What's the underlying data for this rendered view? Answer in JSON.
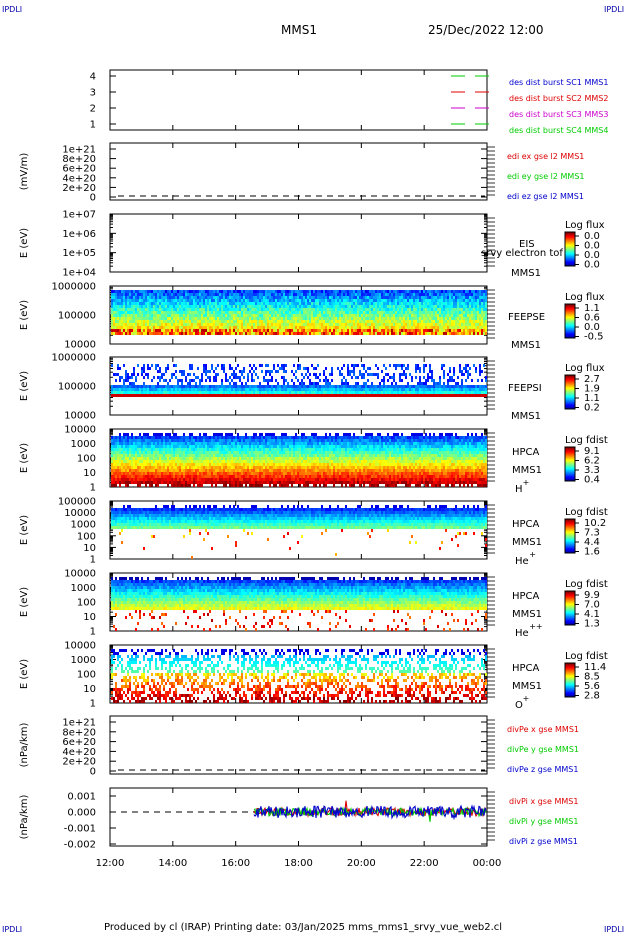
{
  "corner_label": "IPDLI",
  "title": {
    "spacecraft": "MMS1",
    "datetime": "25/Dec/2022 12:00"
  },
  "footer": {
    "text": "Produced by cl (IRAP)   Printing date: 03/Jan/2025   mms_mms1_srvy_vue_web2.cl"
  },
  "colors": {
    "red": "#dd0000",
    "green": "#00cc00",
    "blue": "#0000cc",
    "magenta": "#cc00cc",
    "black": "#000000"
  },
  "chart_data": [
    {
      "type": "line",
      "panel": "availability",
      "ylabel": "",
      "ylim": [
        0.5,
        4.5
      ],
      "yticks": [
        "1",
        "2",
        "3",
        "4"
      ],
      "series": [
        {
          "name": "des dist burst SC1 MMS1",
          "color": "#00cc00",
          "values": []
        },
        {
          "name": "des dist burst SC2 MMS2",
          "color": "#dd0000",
          "values": []
        },
        {
          "name": "des dist burst SC3 MMS3",
          "color": "#cc00cc",
          "values": []
        },
        {
          "name": "des dist burst SC4 MMS4",
          "color": "#00cc00",
          "values": []
        }
      ]
    },
    {
      "type": "line",
      "panel": "edi_e",
      "ylabel": "(mV/m)",
      "yticks": [
        "0",
        "2e+20",
        "4e+20",
        "6e+20",
        "8e+20",
        "1e+21"
      ],
      "series": [
        {
          "name": "edi ex gse l2 MMS1",
          "color": "#dd0000",
          "values": []
        },
        {
          "name": "edi ey gse l2 MMS1",
          "color": "#00cc00",
          "values": []
        },
        {
          "name": "edi ez gse l2 MMS1",
          "color": "#0000cc",
          "values": []
        }
      ]
    },
    {
      "type": "heatmap",
      "panel": "eis",
      "ylabel": "E (eV)",
      "yscale": "log",
      "ylim": [
        10000.0,
        10000000.0
      ],
      "yticks": [
        "1e+04",
        "1e+05",
        "1e+06",
        "1e+07"
      ],
      "instrument": [
        "EIS",
        "srvy electron tof",
        "MMS1"
      ],
      "colorbar": {
        "title": "Log flux",
        "ticks": [
          "0.0",
          "0.0",
          "0.0",
          "0.0"
        ]
      },
      "values": []
    },
    {
      "type": "heatmap",
      "panel": "feeps_e",
      "ylabel": "E (eV)",
      "yscale": "log",
      "ylim": [
        10000,
        1000000
      ],
      "yticks": [
        "10000",
        "100000",
        "1000000"
      ],
      "instrument": [
        "FEEPSE",
        "MMS1"
      ],
      "colorbar": {
        "title": "Log flux",
        "ticks": [
          "1.1",
          "0.6",
          "0.0",
          "-0.5"
        ]
      }
    },
    {
      "type": "heatmap",
      "panel": "feeps_i",
      "ylabel": "E (eV)",
      "yscale": "log",
      "ylim": [
        10000,
        1000000
      ],
      "yticks": [
        "10000",
        "100000",
        "1000000"
      ],
      "instrument": [
        "FEEPSI",
        "MMS1"
      ],
      "colorbar": {
        "title": "Log flux",
        "ticks": [
          "2.7",
          "1.9",
          "1.1",
          "0.2"
        ]
      }
    },
    {
      "type": "heatmap",
      "panel": "hpca_h",
      "ylabel": "E (eV)",
      "yscale": "log",
      "ylim": [
        1,
        10000
      ],
      "yticks": [
        "1",
        "10",
        "100",
        "1000",
        "10000"
      ],
      "instrument": [
        "HPCA",
        "MMS1",
        "H",
        "+"
      ],
      "colorbar": {
        "title": "Log fdist",
        "ticks": [
          "9.1",
          "6.2",
          "3.3",
          "0.4"
        ]
      }
    },
    {
      "type": "heatmap",
      "panel": "hpca_he",
      "ylabel": "E (eV)",
      "yscale": "log",
      "ylim": [
        1,
        100000
      ],
      "yticks": [
        "1",
        "10",
        "100",
        "1000",
        "10000",
        "100000"
      ],
      "instrument": [
        "HPCA",
        "MMS1",
        "He",
        "+"
      ],
      "colorbar": {
        "title": "Log fdist",
        "ticks": [
          "10.2",
          "7.3",
          "4.4",
          "1.6"
        ]
      }
    },
    {
      "type": "heatmap",
      "panel": "hpca_hepp",
      "ylabel": "E (eV)",
      "yscale": "log",
      "ylim": [
        1,
        10000
      ],
      "yticks": [
        "1",
        "10",
        "100",
        "1000",
        "10000"
      ],
      "instrument": [
        "HPCA",
        "MMS1",
        "He",
        "++"
      ],
      "colorbar": {
        "title": "Log fdist",
        "ticks": [
          "9.9",
          "7.0",
          "4.1",
          "1.3"
        ]
      }
    },
    {
      "type": "heatmap",
      "panel": "hpca_o",
      "ylabel": "E (eV)",
      "yscale": "log",
      "ylim": [
        1,
        10000
      ],
      "yticks": [
        "1",
        "10",
        "100",
        "1000",
        "10000"
      ],
      "instrument": [
        "HPCA",
        "MMS1",
        "O",
        "+"
      ],
      "colorbar": {
        "title": "Log fdist",
        "ticks": [
          "11.4",
          "8.5",
          "5.6",
          "2.8"
        ]
      }
    },
    {
      "type": "line",
      "panel": "divpe",
      "ylabel": "(nPa/km)",
      "yticks": [
        "0",
        "2e+20",
        "4e+20",
        "6e+20",
        "8e+20",
        "1e+21"
      ],
      "series": [
        {
          "name": "divPe x gse MMS1",
          "color": "#dd0000",
          "values": []
        },
        {
          "name": "divPe y gse MMS1",
          "color": "#00cc00",
          "values": []
        },
        {
          "name": "divPe z gse MMS1",
          "color": "#0000cc",
          "values": []
        }
      ]
    },
    {
      "type": "line",
      "panel": "divpi",
      "ylabel": "(nPa/km)",
      "ylim": [
        -0.0023,
        0.0015
      ],
      "yticks": [
        "-0.002",
        "-0.001",
        "0.000",
        "0.001"
      ],
      "series": [
        {
          "name": "divPi x gse MMS1",
          "color": "#dd0000"
        },
        {
          "name": "divPi y gse MMS1",
          "color": "#00cc00"
        },
        {
          "name": "divPi z gse MMS1",
          "color": "#0000cc"
        }
      ],
      "data_start": "16:40",
      "data_end": "00:00"
    }
  ],
  "xaxis": {
    "ticks": [
      "12:00",
      "14:00",
      "16:00",
      "18:00",
      "20:00",
      "22:00",
      "00:00"
    ]
  }
}
